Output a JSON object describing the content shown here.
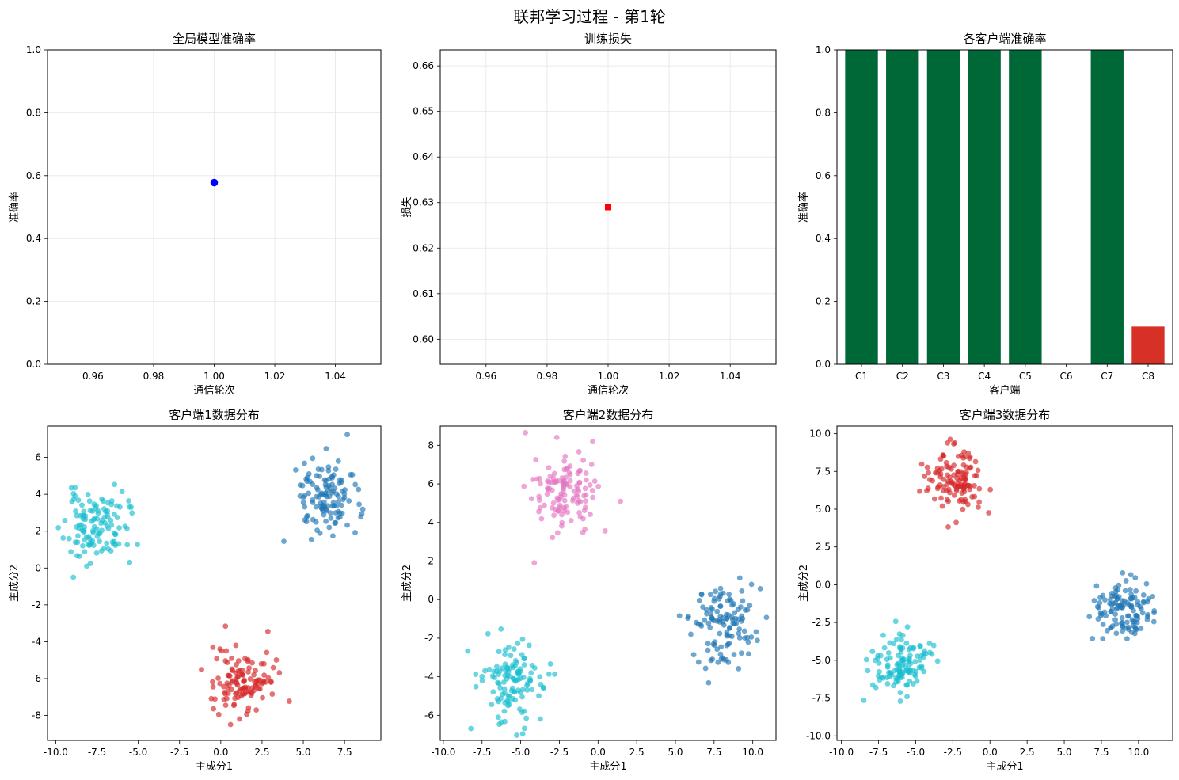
{
  "figure_title": "联邦学习过程 - 第1轮",
  "colors": {
    "global_point": "#0000ff",
    "loss_point": "#ff0000",
    "bar_high": "#006837",
    "bar_low": "#d73027",
    "cluster_blue": "#1f77b4",
    "cluster_cyan": "#17becf",
    "cluster_red": "#d62728",
    "cluster_pink": "#e377c2",
    "grid": "#e6e6e6"
  },
  "chart_data": [
    {
      "id": "global-accuracy",
      "type": "scatter",
      "title": "全局模型准确率",
      "xlabel": "通信轮次",
      "ylabel": "准确率",
      "xlim": [
        0.945,
        1.055
      ],
      "ylim": [
        0,
        1.0
      ],
      "xticks": [
        0.96,
        0.98,
        1.0,
        1.02,
        1.04
      ],
      "xtick_labels": [
        "0.96",
        "0.98",
        "1.00",
        "1.02",
        "1.04"
      ],
      "yticks": [
        0,
        0.2,
        0.4,
        0.6,
        0.8,
        1.0
      ],
      "ytick_labels": [
        "0.0",
        "0.2",
        "0.4",
        "0.6",
        "0.8",
        "1.0"
      ],
      "grid": true,
      "marker": "circle",
      "color": "#0000ff",
      "points": [
        {
          "x": 1.0,
          "y": 0.578
        }
      ]
    },
    {
      "id": "training-loss",
      "type": "scatter",
      "title": "训练损失",
      "xlabel": "通信轮次",
      "ylabel": "损失",
      "xlim": [
        0.945,
        1.055
      ],
      "ylim": [
        0.5945,
        0.6635
      ],
      "xticks": [
        0.96,
        0.98,
        1.0,
        1.02,
        1.04
      ],
      "xtick_labels": [
        "0.96",
        "0.98",
        "1.00",
        "1.02",
        "1.04"
      ],
      "yticks": [
        0.6,
        0.61,
        0.62,
        0.63,
        0.64,
        0.65,
        0.66
      ],
      "ytick_labels": [
        "0.60",
        "0.61",
        "0.62",
        "0.63",
        "0.64",
        "0.65",
        "0.66"
      ],
      "grid": true,
      "marker": "square",
      "color": "#ff0000",
      "points": [
        {
          "x": 1.0,
          "y": 0.629
        }
      ]
    },
    {
      "id": "client-accuracy",
      "type": "bar",
      "title": "各客户端准确率",
      "xlabel": "客户端",
      "ylabel": "准确率",
      "ylim": [
        0,
        1.0
      ],
      "yticks": [
        0,
        0.2,
        0.4,
        0.6,
        0.8,
        1.0
      ],
      "ytick_labels": [
        "0.0",
        "0.2",
        "0.4",
        "0.6",
        "0.8",
        "1.0"
      ],
      "grid": false,
      "categories": [
        "C1",
        "C2",
        "C3",
        "C4",
        "C5",
        "C6",
        "C7",
        "C8"
      ],
      "values": [
        1.0,
        1.0,
        1.0,
        1.0,
        1.0,
        0.0,
        1.0,
        0.12
      ],
      "bar_colors": [
        "#006837",
        "#006837",
        "#006837",
        "#006837",
        "#006837",
        "#006837",
        "#006837",
        "#d73027"
      ]
    },
    {
      "id": "client1-distribution",
      "type": "scatter",
      "title": "客户端1数据分布",
      "xlabel": "主成分1",
      "ylabel": "主成分2",
      "xlim": [
        -10.5,
        9.7
      ],
      "ylim": [
        -9.35,
        7.7
      ],
      "xticks": [
        -10,
        -7.5,
        -5,
        -2.5,
        0,
        2.5,
        5,
        7.5
      ],
      "xtick_labels": [
        "-10.0",
        "-7.5",
        "-5.0",
        "-2.5",
        "0.0",
        "2.5",
        "5.0",
        "7.5"
      ],
      "yticks": [
        -8,
        -6,
        -4,
        -2,
        0,
        2,
        4,
        6
      ],
      "ytick_labels": [
        "-8",
        "-6",
        "-4",
        "-2",
        "0",
        "2",
        "4",
        "6"
      ],
      "grid": false,
      "clusters": [
        {
          "color": "#17becf",
          "center": [
            -7.6,
            2.2
          ],
          "spread": [
            0.95,
            0.95
          ],
          "count": 120,
          "seed": 11
        },
        {
          "color": "#1f77b4",
          "center": [
            6.4,
            3.8
          ],
          "spread": [
            1.0,
            1.05
          ],
          "count": 120,
          "seed": 23
        },
        {
          "color": "#d62728",
          "center": [
            1.4,
            -6.1
          ],
          "spread": [
            0.95,
            0.95
          ],
          "count": 120,
          "seed": 37
        }
      ]
    },
    {
      "id": "client2-distribution",
      "type": "scatter",
      "title": "客户端2数据分布",
      "xlabel": "主成分1",
      "ylabel": "主成分2",
      "xlim": [
        -10.2,
        11.5
      ],
      "ylim": [
        -7.3,
        9.0
      ],
      "xticks": [
        -10,
        -7.5,
        -5,
        -2.5,
        0,
        2.5,
        5,
        7.5,
        10
      ],
      "xtick_labels": [
        "-10.0",
        "-7.5",
        "-5.0",
        "-2.5",
        "0.0",
        "2.5",
        "5.0",
        "7.5",
        "10.0"
      ],
      "yticks": [
        -6,
        -4,
        -2,
        0,
        2,
        4,
        6,
        8
      ],
      "ytick_labels": [
        "-6",
        "-4",
        "-2",
        "0",
        "2",
        "4",
        "6",
        "8"
      ],
      "grid": false,
      "clusters": [
        {
          "color": "#e377c2",
          "center": [
            -2.0,
            5.6
          ],
          "spread": [
            1.05,
            1.1
          ],
          "count": 120,
          "seed": 41
        },
        {
          "color": "#1f77b4",
          "center": [
            8.1,
            -1.3
          ],
          "spread": [
            1.05,
            1.05
          ],
          "count": 120,
          "seed": 53
        },
        {
          "color": "#17becf",
          "center": [
            -5.6,
            -4.2
          ],
          "spread": [
            1.05,
            1.05
          ],
          "count": 120,
          "seed": 67
        }
      ]
    },
    {
      "id": "client3-distribution",
      "type": "scatter",
      "title": "客户端3数据分布",
      "xlabel": "主成分1",
      "ylabel": "主成分2",
      "xlim": [
        -10.3,
        12.3
      ],
      "ylim": [
        -10.3,
        10.5
      ],
      "xticks": [
        -10,
        -7.5,
        -5,
        -2.5,
        0,
        2.5,
        5,
        7.5,
        10
      ],
      "xtick_labels": [
        "-10.0",
        "-7.5",
        "-5.0",
        "-2.5",
        "0.0",
        "2.5",
        "5.0",
        "7.5",
        "10.0"
      ],
      "yticks": [
        -10,
        -7.5,
        -5,
        -2.5,
        0,
        2.5,
        5,
        7.5,
        10
      ],
      "ytick_labels": [
        "-10.0",
        "-7.5",
        "-5.0",
        "-2.5",
        "0.0",
        "2.5",
        "5.0",
        "7.5",
        "10.0"
      ],
      "grid": false,
      "clusters": [
        {
          "color": "#d62728",
          "center": [
            -2.4,
            7.0
          ],
          "spread": [
            1.05,
            1.05
          ],
          "count": 120,
          "seed": 71
        },
        {
          "color": "#1f77b4",
          "center": [
            8.9,
            -1.6
          ],
          "spread": [
            1.05,
            1.05
          ],
          "count": 120,
          "seed": 83
        },
        {
          "color": "#17becf",
          "center": [
            -6.1,
            -5.3
          ],
          "spread": [
            1.05,
            1.05
          ],
          "count": 120,
          "seed": 97
        }
      ]
    }
  ]
}
